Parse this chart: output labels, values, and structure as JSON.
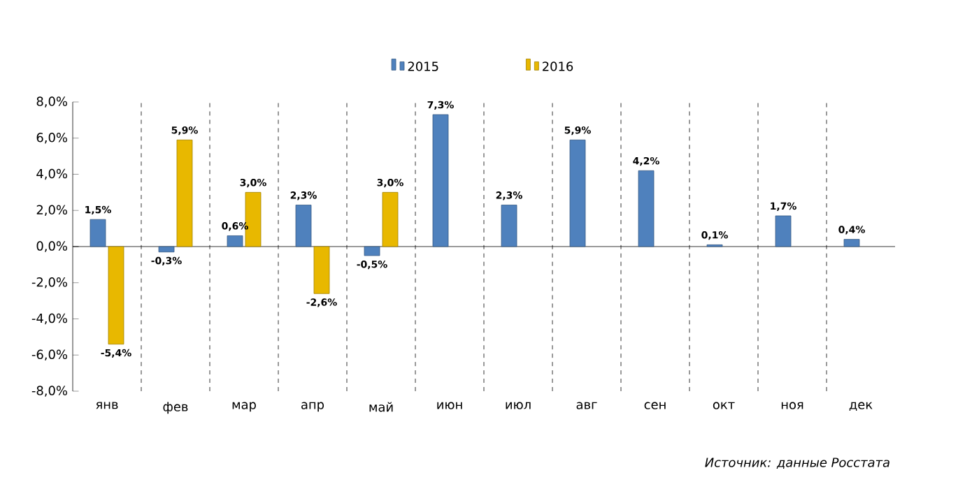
{
  "chart_data": {
    "type": "bar",
    "categories": [
      "янв",
      "фев",
      "мар",
      "апр",
      "май",
      "июн",
      "июл",
      "авг",
      "сен",
      "окт",
      "ноя",
      "дек"
    ],
    "series": [
      {
        "name": "2015",
        "color": "#4f81bd",
        "values": [
          1.5,
          -0.3,
          0.6,
          2.3,
          -0.5,
          7.3,
          2.3,
          5.9,
          4.2,
          0.1,
          1.7,
          0.4
        ],
        "value_labels": [
          "1,5%",
          "-0,3%",
          "0,6%",
          "2,3%",
          "-0,5%",
          "7,3%",
          "2,3%",
          "5,9%",
          "4,2%",
          "0,1%",
          "1,7%",
          "0,4%"
        ]
      },
      {
        "name": "2016",
        "color": "#e8b800",
        "values": [
          -5.4,
          5.9,
          3.0,
          -2.6,
          3.0,
          null,
          null,
          null,
          null,
          null,
          null,
          null
        ],
        "value_labels": [
          "-5,4%",
          "5,9%",
          "3,0%",
          "-2,6%",
          "3,0%",
          null,
          null,
          null,
          null,
          null,
          null,
          null
        ]
      }
    ],
    "ylim": [
      -8,
      8
    ],
    "yticks": [
      {
        "value": -8,
        "label": "-8,0%"
      },
      {
        "value": -6,
        "label": "-6,0%"
      },
      {
        "value": -4,
        "label": "-4,0%"
      },
      {
        "value": -2,
        "label": "-2,0%"
      },
      {
        "value": 0,
        "label": "0,0%"
      },
      {
        "value": 2,
        "label": "2,0%"
      },
      {
        "value": 4,
        "label": "4,0%"
      },
      {
        "value": 6,
        "label": "6,0%"
      },
      {
        "value": 8,
        "label": "8,0%"
      }
    ],
    "grid": "x",
    "legend": "top",
    "annotations": [
      "Источник: данные Росстата"
    ]
  }
}
